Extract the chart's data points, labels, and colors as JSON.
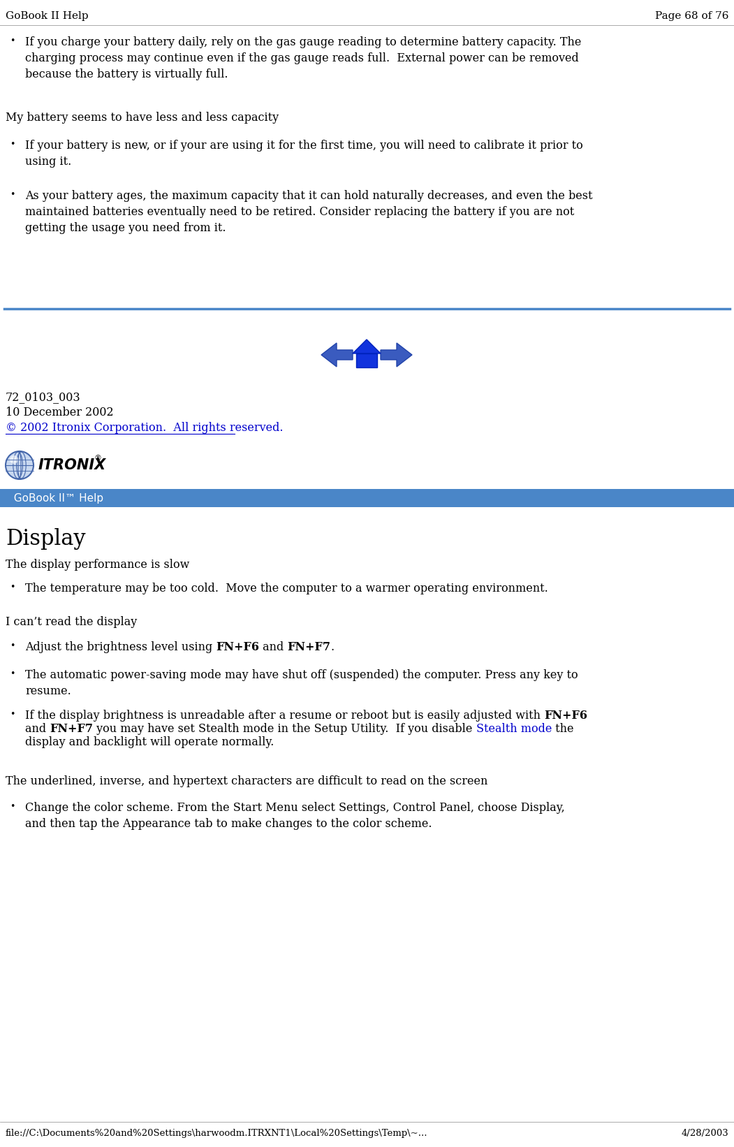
{
  "bg_color": "#ffffff",
  "text_color": "#000000",
  "link_color": "#0000cc",
  "separator_color": "#4a86c8",
  "banner_bg": "#4a86c8",
  "banner_text_color": "#ffffff",
  "header_left": "GoBook II Help",
  "header_right": "Page 68 of 76",
  "bullet1": "If you charge your battery daily, rely on the gas gauge reading to determine battery capacity. The\ncharging process may continue even if the gas gauge reads full.  External power can be removed\nbecause the battery is virtually full.",
  "section1": "My battery seems to have less and less capacity",
  "bullet2": "If your battery is new, or if your are using it for the first time, you will need to calibrate it prior to\nusing it.",
  "bullet3": "As your battery ages, the maximum capacity that it can hold naturally decreases, and even the best\nmaintained batteries eventually need to be retired. Consider replacing the battery if you are not\ngetting the usage you need from it.",
  "footer1": "72_0103_003",
  "footer2": "10 December 2002",
  "footer3": "© 2002 Itronix Corporation.  All rights reserved.",
  "banner_text": "  GoBook II™ Help",
  "section2": "Display",
  "sub2_1": "The display performance is slow",
  "bullet4": "The temperature may be too cold.  Move the computer to a warmer operating environment.",
  "sub2_2": "I can’t read the display",
  "bullet5_pre": "Adjust the brightness level using ",
  "bullet5_b1": "FN+F6",
  "bullet5_mid": " and ",
  "bullet5_b2": "FN+F7",
  "bullet5_end": ".",
  "bullet6": "The automatic power-saving mode may have shut off (suspended) the computer. Press any key to\nresume.",
  "bullet7_l1_pre": "If the display brightness is unreadable after a resume or reboot but is easily adjusted with ",
  "bullet7_l1_b": "FN+F6",
  "bullet7_l2_pre": "and ",
  "bullet7_l2_b": "FN+F7",
  "bullet7_l2_mid": " you may have set Stealth mode in the Setup Utility.  If you disable ",
  "bullet7_l2_link": "Stealth mode",
  "bullet7_l2_end": " the",
  "bullet7_l3": "display and backlight will operate normally.",
  "sub2_3": "The underlined, inverse, and hypertext characters are difficult to read on the screen",
  "bullet8": "Change the color scheme. From the Start Menu select Settings, Control Panel, choose Display,\nand then tap the Appearance tab to make changes to the color scheme.",
  "bottom_left": "file://C:\\Documents%20and%20Settings\\harwoodm.ITRXNT1\\Local%20Settings\\Temp\\~...",
  "bottom_right": "4/28/2003",
  "fs": 11.5,
  "fs_header": 11,
  "lh": 19.5
}
